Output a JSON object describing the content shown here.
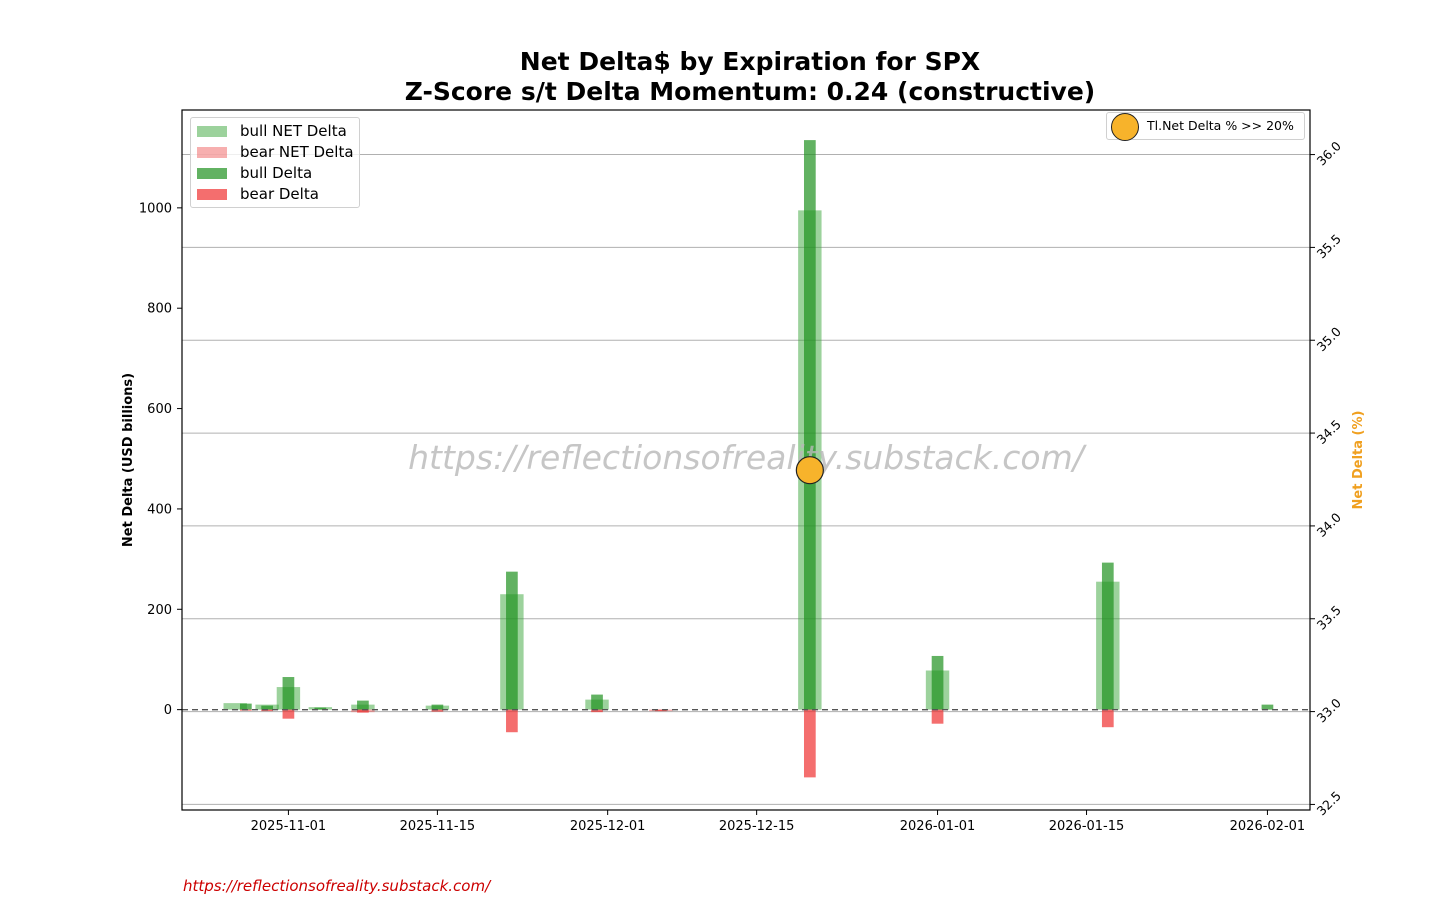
{
  "chart_data": {
    "type": "bar",
    "title_lines": [
      "Net Delta$ by Expiration for SPX",
      "Z-Score s/t Delta Momentum: 0.24 (constructive)"
    ],
    "ylabel_left": "Net Delta (USD billions)",
    "ylabel_right": "Net Delta (%)",
    "left_yticks": [
      0,
      200,
      400,
      600,
      800,
      1000
    ],
    "left_ylim": [
      -200,
      1195
    ],
    "right_yticks": [
      "32.5",
      "33.0",
      "33.5",
      "34.0",
      "34.5",
      "35.0",
      "35.5",
      "36.0"
    ],
    "right_ylim": [
      32.47,
      36.24
    ],
    "xtick_labels": [
      "2025-11-01",
      "2025-11-15",
      "2025-12-01",
      "2025-12-15",
      "2026-01-01",
      "2026-01-15",
      "2026-02-01"
    ],
    "xtick_dates": [
      "2025-11-01",
      "2025-11-15",
      "2025-12-01",
      "2025-12-15",
      "2026-01-01",
      "2026-01-15",
      "2026-02-01"
    ],
    "xlim": [
      "2025-10-22",
      "2026-02-05"
    ],
    "grid": "horizontal (right axis)",
    "zero_line": "dashed",
    "watermark": "https://reflectionsofreality.substack.com/",
    "series": [
      {
        "name": "bull NET Delta",
        "color": "#3aa63a",
        "opacity": 0.5,
        "points": [
          [
            "2025-10-27",
            13
          ],
          [
            "2025-10-30",
            10
          ],
          [
            "2025-11-01",
            45
          ],
          [
            "2025-11-04",
            5
          ],
          [
            "2025-11-08",
            10
          ],
          [
            "2025-11-15",
            8
          ],
          [
            "2025-11-22",
            230
          ],
          [
            "2025-11-30",
            20
          ],
          [
            "2025-12-20",
            995
          ],
          [
            "2026-01-01",
            78
          ],
          [
            "2026-01-17",
            255
          ]
        ]
      },
      {
        "name": "bear NET Delta",
        "color": "#f06060",
        "opacity": 0.5,
        "points": [
          [
            "2025-11-08",
            -5
          ],
          [
            "2025-12-06",
            -3
          ]
        ]
      },
      {
        "name": "bull Delta",
        "color": "#1f911f",
        "opacity": 0.7,
        "points": [
          [
            "2025-10-28",
            12
          ],
          [
            "2025-10-30",
            8
          ],
          [
            "2025-11-01",
            65
          ],
          [
            "2025-11-04",
            4
          ],
          [
            "2025-11-08",
            18
          ],
          [
            "2025-11-15",
            10
          ],
          [
            "2025-11-22",
            275
          ],
          [
            "2025-11-30",
            30
          ],
          [
            "2025-12-20",
            1135
          ],
          [
            "2026-01-01",
            107
          ],
          [
            "2026-01-17",
            293
          ],
          [
            "2026-02-01",
            10
          ]
        ]
      },
      {
        "name": "bear Delta",
        "color": "#f03030",
        "opacity": 0.7,
        "points": [
          [
            "2025-10-28",
            -2
          ],
          [
            "2025-10-30",
            -3
          ],
          [
            "2025-11-01",
            -18
          ],
          [
            "2025-11-08",
            -6
          ],
          [
            "2025-11-15",
            -4
          ],
          [
            "2025-11-22",
            -45
          ],
          [
            "2025-11-30",
            -5
          ],
          [
            "2025-12-06",
            -3
          ],
          [
            "2025-12-20",
            -135
          ],
          [
            "2026-01-01",
            -28
          ],
          [
            "2026-01-17",
            -35
          ]
        ]
      }
    ],
    "net_delta_pct": {
      "date": "2025-12-20",
      "value": 34.3,
      "color": "#f7b32b"
    },
    "right_legend_label": "Tl.Net Delta % >> 20%"
  },
  "footer_text": "https://reflectionsofreality.substack.com/"
}
